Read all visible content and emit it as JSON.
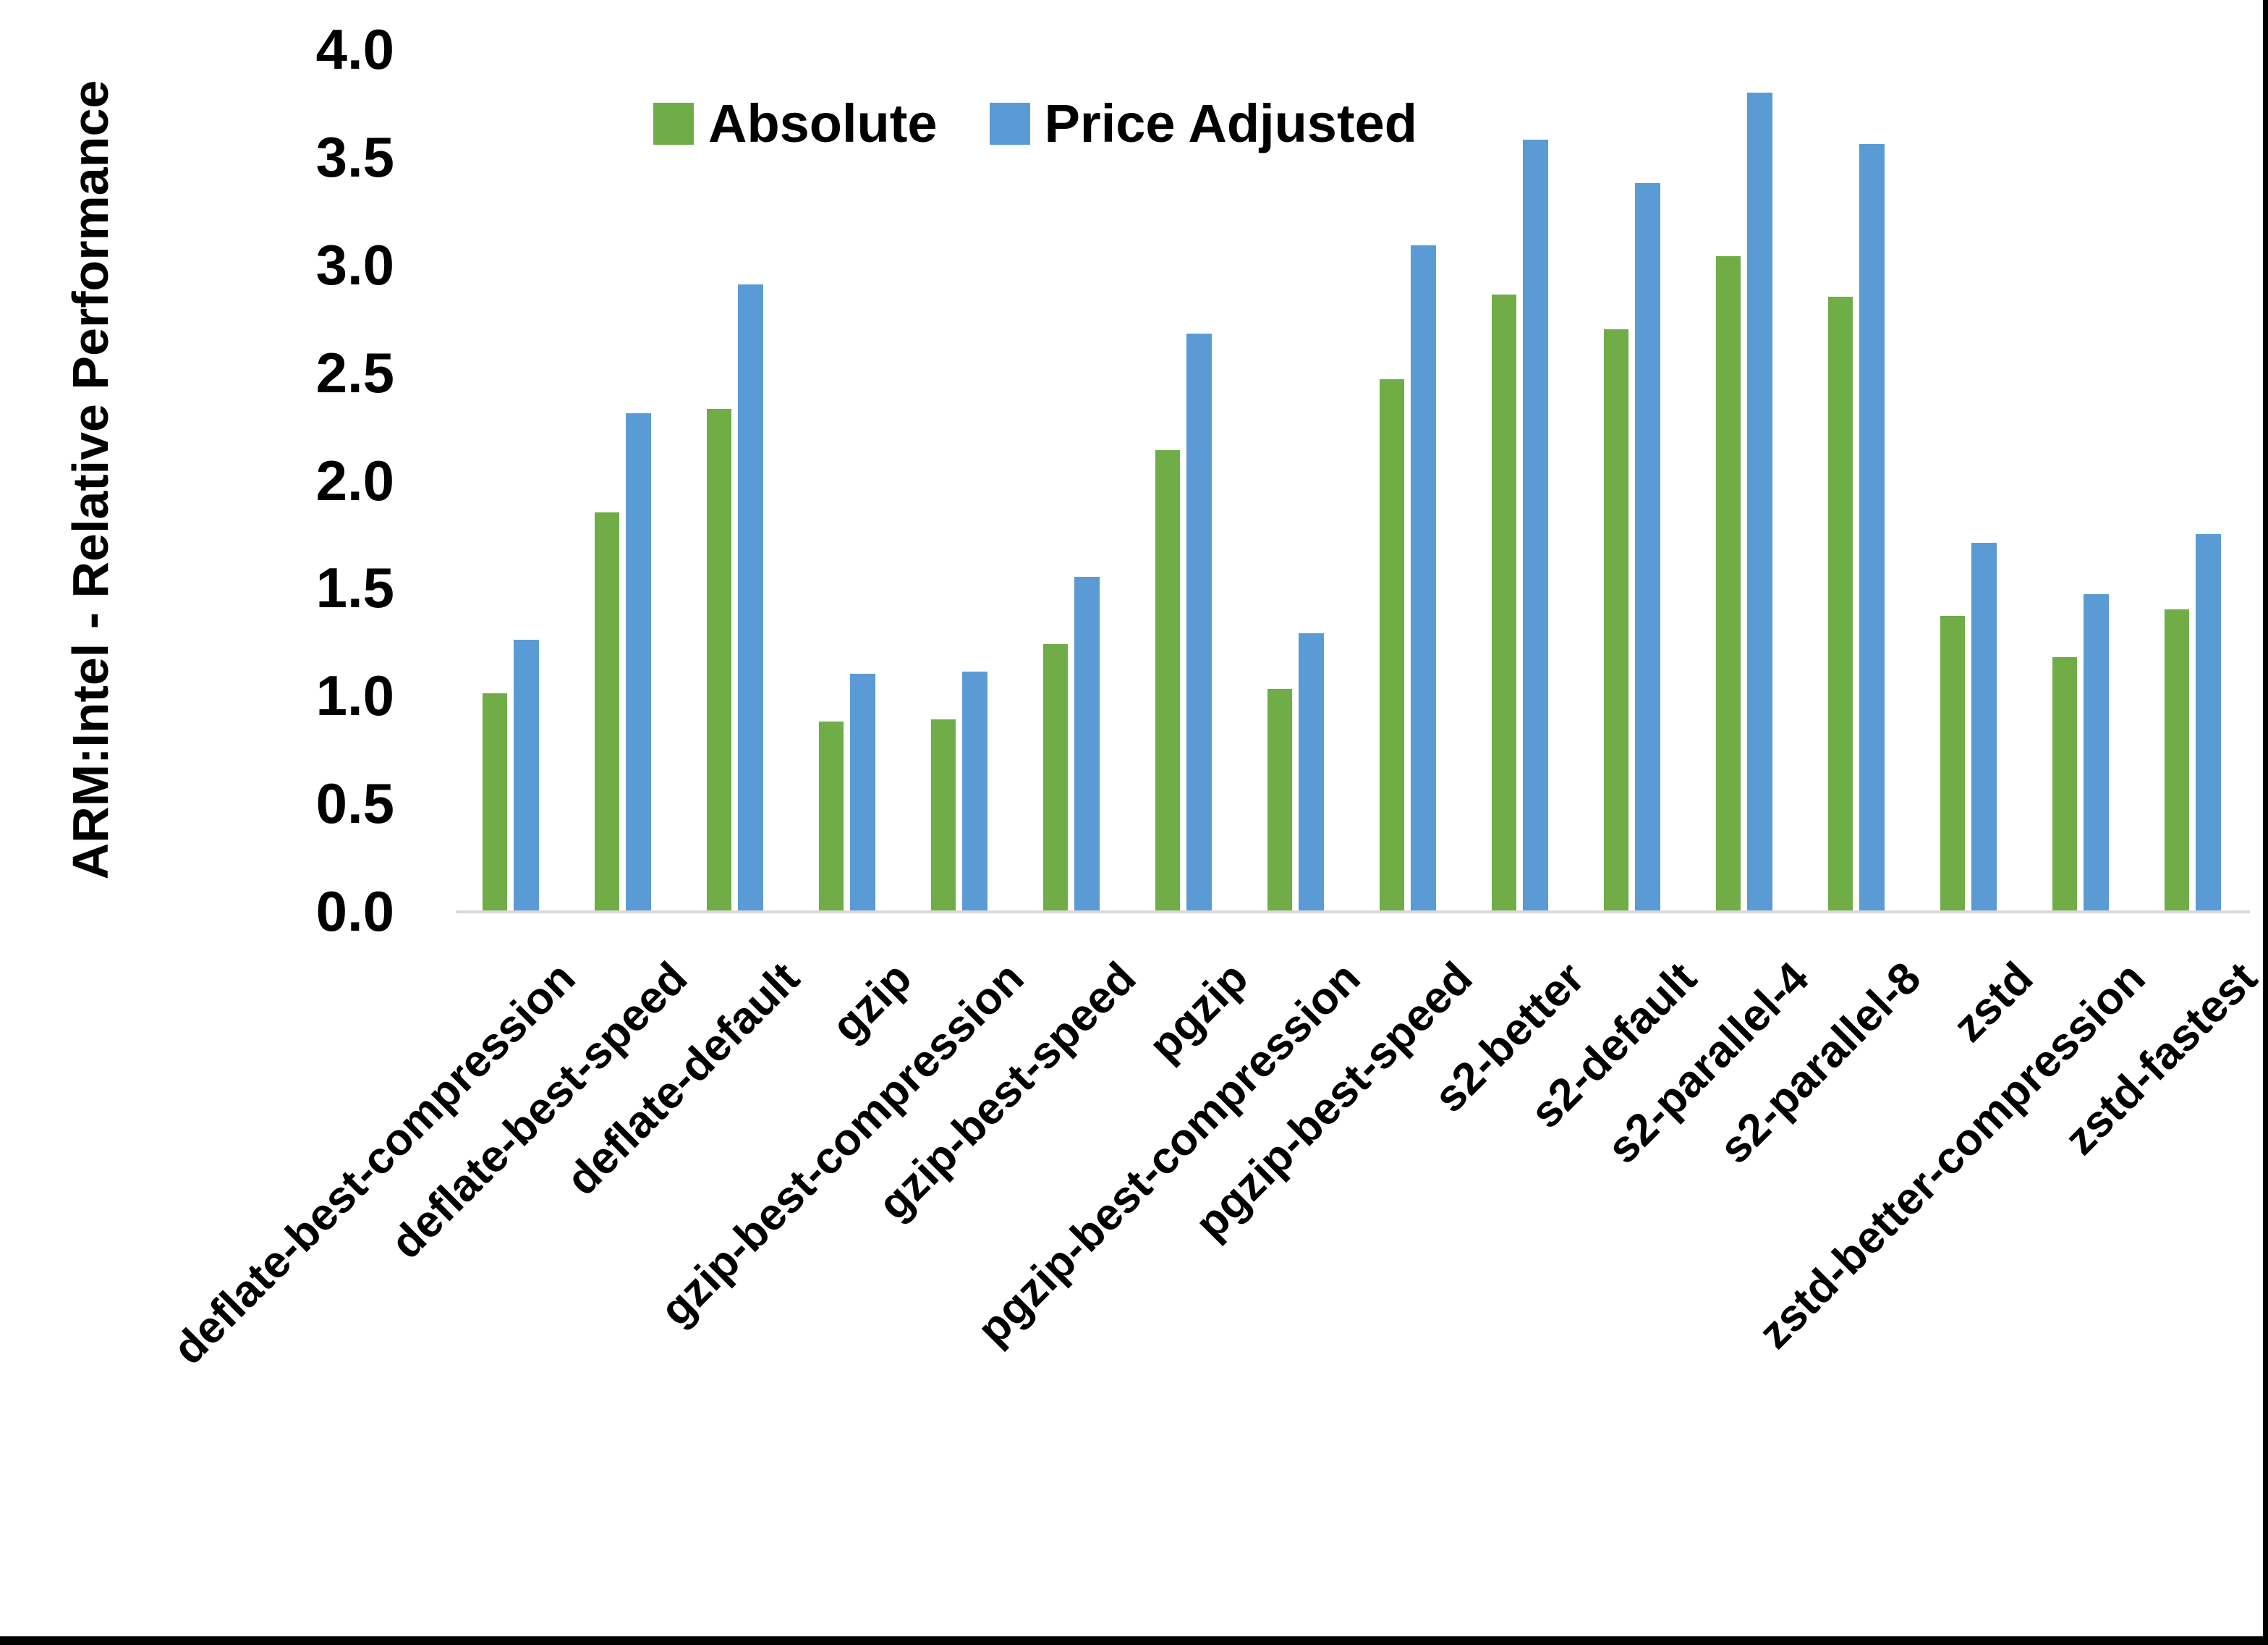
{
  "chart_data": {
    "type": "bar",
    "title": "",
    "xlabel": "",
    "ylabel": "ARM:Intel - Relative Performance",
    "ylim": [
      0.0,
      4.0
    ],
    "ytick_interval": 0.5,
    "yticks": [
      "0.0",
      "0.5",
      "1.0",
      "1.5",
      "2.0",
      "2.5",
      "3.0",
      "3.5",
      "4.0"
    ],
    "grid": false,
    "legend_position": "top-center",
    "background_color": "#ffffff",
    "axis_line_color": "#d9d9d9",
    "categories": [
      "deflate-best-compression",
      "deflate-best-speed",
      "deflate-default",
      "gzip",
      "gzip-best-compression",
      "gzip-best-speed",
      "pgzip",
      "pgzip-best-compression",
      "pgzip-best-speed",
      "s2-better",
      "s2-default",
      "s2-parallel-4",
      "s2-parallel-8",
      "zstd",
      "zstd-better-compression",
      "zstd-fastest"
    ],
    "series": [
      {
        "name": "Absolute",
        "color": "#70AD47",
        "values": [
          1.01,
          1.85,
          2.33,
          0.88,
          0.89,
          1.24,
          2.14,
          1.03,
          2.47,
          2.86,
          2.7,
          3.04,
          2.85,
          1.37,
          1.18,
          1.4
        ]
      },
      {
        "name": "Price Adjusted",
        "color": "#5B9BD5",
        "values": [
          1.26,
          2.31,
          2.91,
          1.1,
          1.11,
          1.55,
          2.68,
          1.29,
          3.09,
          3.58,
          3.38,
          3.8,
          3.56,
          1.71,
          1.47,
          1.75
        ]
      }
    ]
  }
}
